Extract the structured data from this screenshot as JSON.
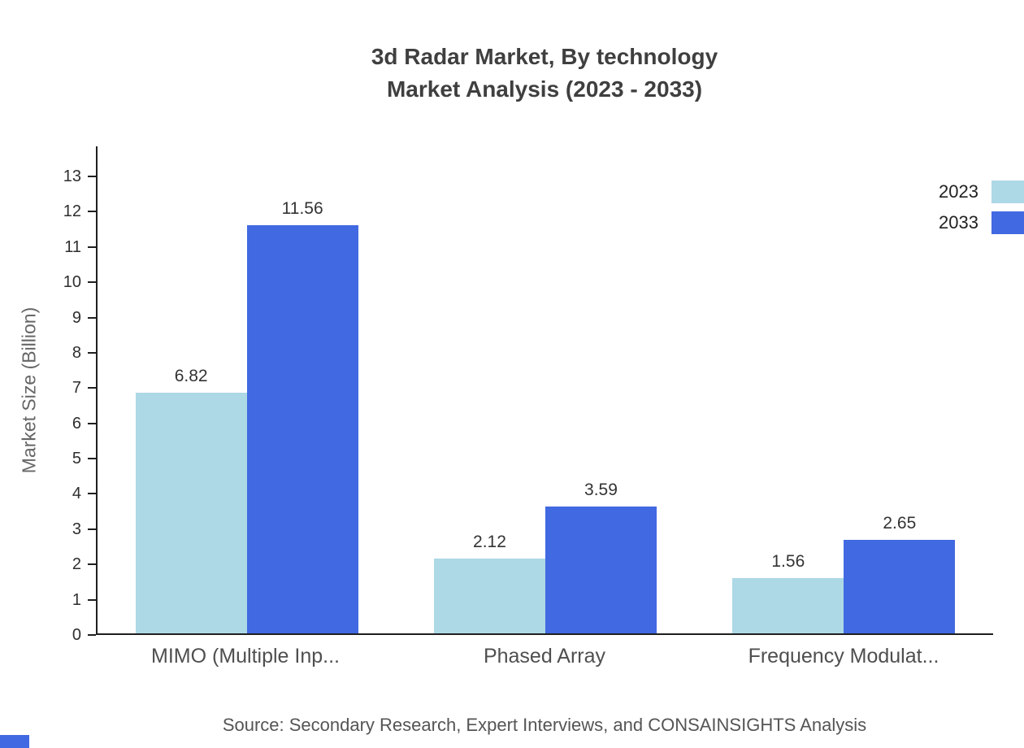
{
  "title": {
    "line1": "3d Radar Market, By technology",
    "line2": "Market Analysis (2023 - 2033)"
  },
  "chart_data": {
    "type": "bar",
    "title": "3d Radar Market, By technology Market Analysis (2023 - 2033)",
    "categories": [
      "MIMO (Multiple Inp...",
      "Phased Array",
      "Frequency Modulat..."
    ],
    "series": [
      {
        "name": "2023",
        "color": "#add8e6",
        "values": [
          6.82,
          2.12,
          1.56
        ]
      },
      {
        "name": "2033",
        "color": "#4169e1",
        "values": [
          11.56,
          3.59,
          2.65
        ]
      }
    ],
    "ylabel": "Market Size (Billion)",
    "ylim": [
      0,
      13
    ],
    "yticks": [
      0,
      1,
      2,
      3,
      4,
      5,
      6,
      7,
      8,
      9,
      10,
      11,
      12,
      13
    ],
    "grid": false,
    "legend_position": "top-right",
    "value_labels": true
  },
  "source": "Source: Secondary Research, Expert Interviews, and CONSAINSIGHTS Analysis",
  "colors": {
    "axis": "#1f1f1f",
    "accent": "#4169e1",
    "series_2023": "#add8e6",
    "series_2033": "#4169e1"
  }
}
